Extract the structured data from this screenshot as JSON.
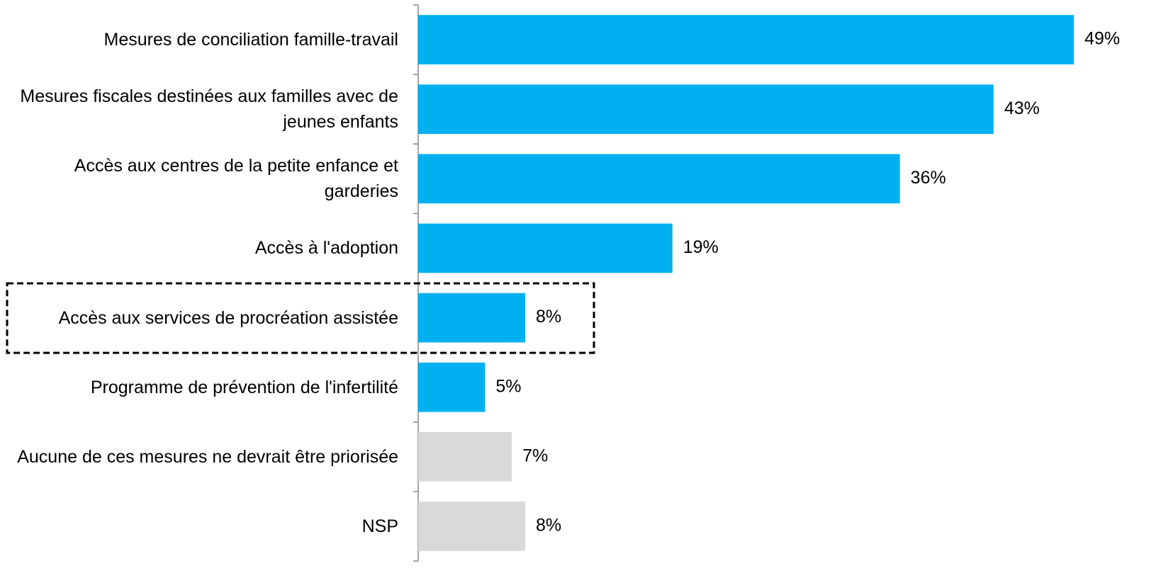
{
  "chart_data": {
    "type": "barh",
    "categories": [
      "Mesures de conciliation famille-travail",
      "Mesures fiscales destinées aux familles avec de jeunes enfants",
      "Accès aux centres de la petite enfance et garderies",
      "Accès à l'adoption",
      "Accès aux services de procréation assistée",
      "Programme de prévention de l'infertilité",
      "Aucune de ces mesures ne devrait être priorisée",
      "NSP"
    ],
    "values": [
      49,
      43,
      36,
      19,
      8,
      5,
      7,
      8
    ],
    "value_labels": [
      "49%",
      "43%",
      "36%",
      "19%",
      "8%",
      "5%",
      "7%",
      "8%"
    ],
    "colors": [
      "#00b0f0",
      "#00b0f0",
      "#00b0f0",
      "#00b0f0",
      "#00b0f0",
      "#00b0f0",
      "#d9d9d9",
      "#d9d9d9"
    ],
    "xlim": [
      0,
      50
    ],
    "highlight": 4
  }
}
